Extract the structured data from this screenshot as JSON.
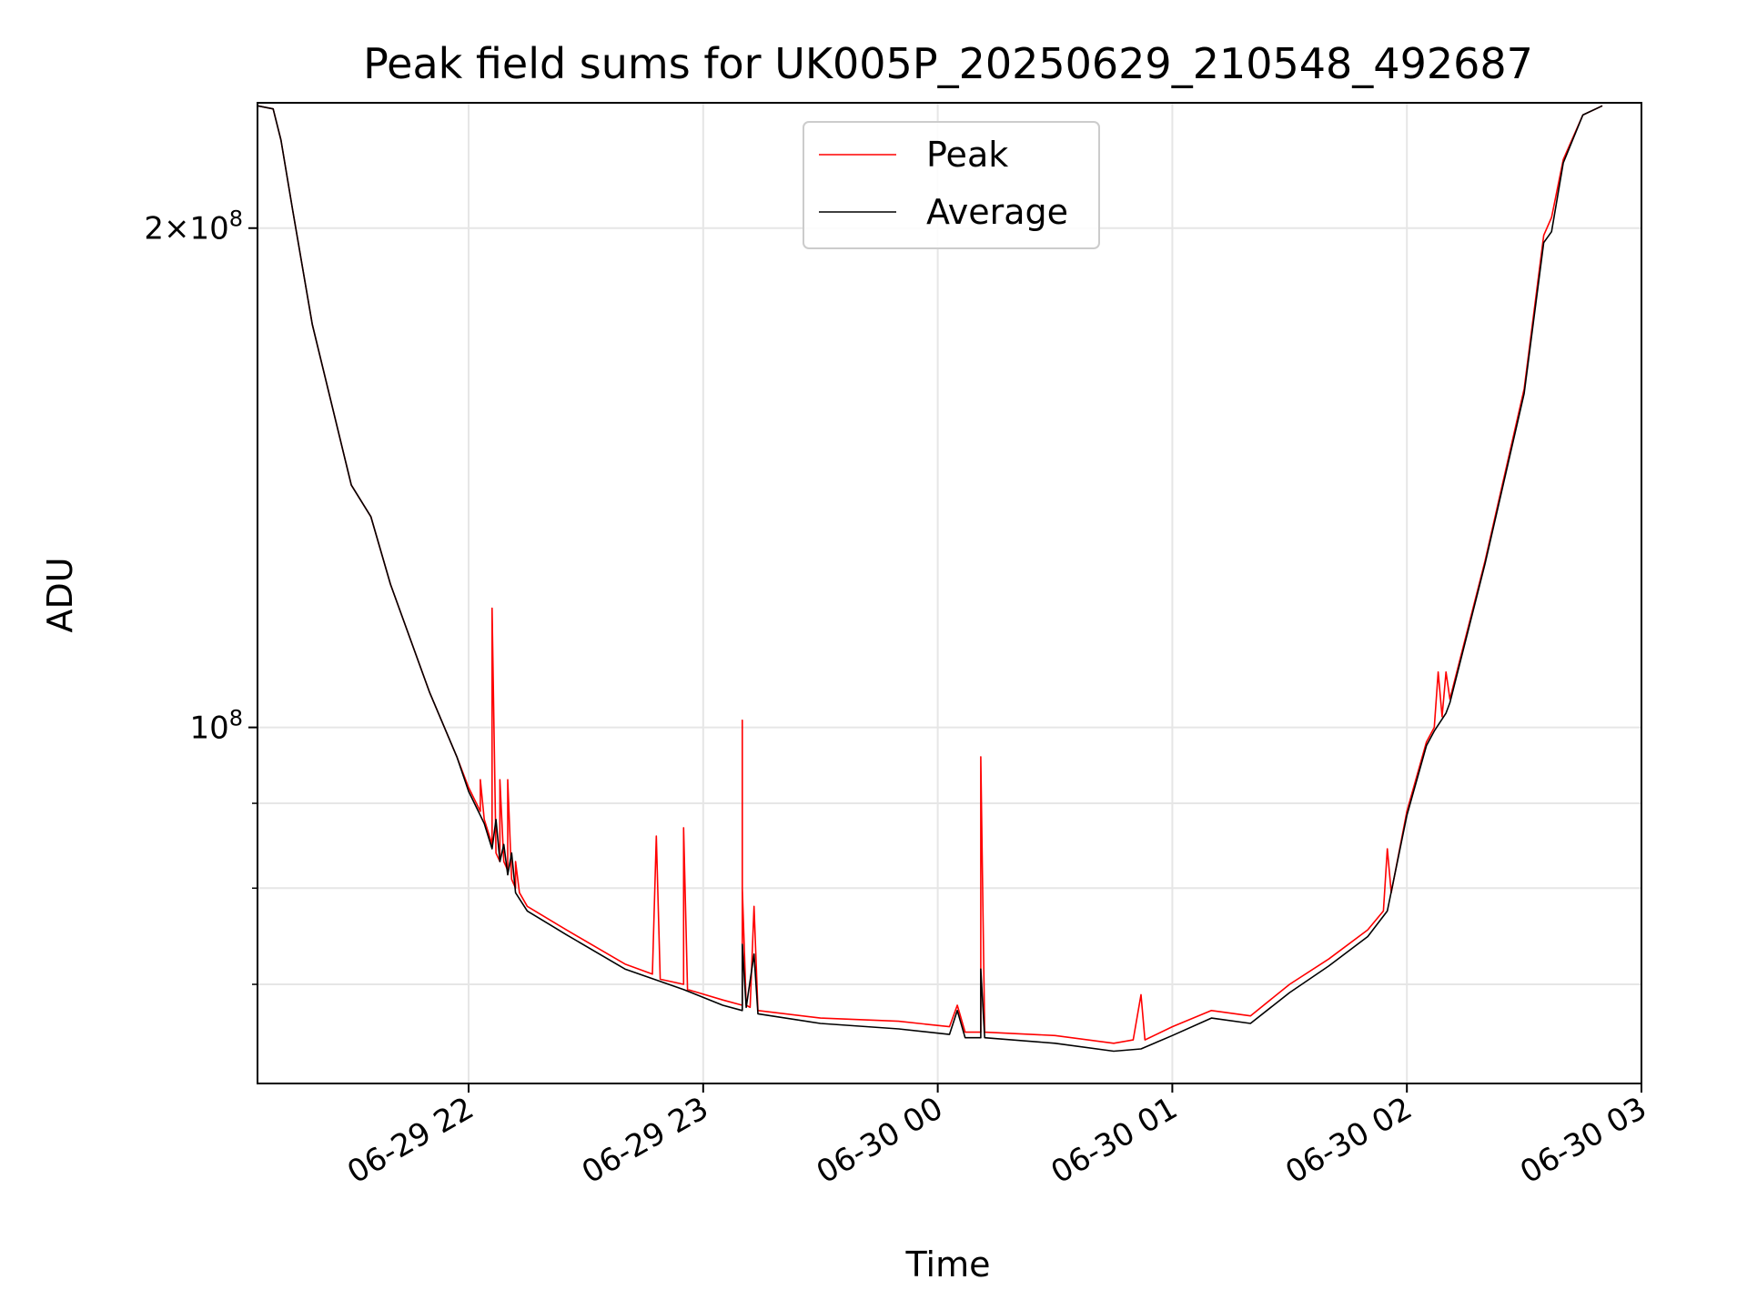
{
  "chart_data": {
    "type": "line",
    "title": "Peak field sums for UK005P_20250629_210548_492687",
    "xlabel": "Time",
    "ylabel": "ADU",
    "yscale": "log",
    "xlim": [
      "2025-06-29 21:06",
      "2025-06-30 03:00"
    ],
    "ylim": [
      61000000,
      238000000
    ],
    "grid": true,
    "legend_position": "top-center",
    "x_ticks": [
      {
        "t": "2025-06-29 22:00",
        "label": "06-29 22"
      },
      {
        "t": "2025-06-29 23:00",
        "label": "06-29 23"
      },
      {
        "t": "2025-06-30 00:00",
        "label": "06-30 00"
      },
      {
        "t": "2025-06-30 01:00",
        "label": "06-30 01"
      },
      {
        "t": "2025-06-30 02:00",
        "label": "06-30 02"
      },
      {
        "t": "2025-06-30 03:00",
        "label": "06-30 03"
      }
    ],
    "y_ticks_labeled": [
      {
        "value": 100000000,
        "mantissa": "",
        "exponent": "8"
      },
      {
        "value": 200000000,
        "mantissa": "2×",
        "exponent": "8"
      }
    ],
    "y_minor_ticks": [
      70000000,
      80000000,
      90000000
    ],
    "series": [
      {
        "name": "Peak",
        "color": "#ff0000",
        "points": [
          [
            "2025-06-29 21:06",
            237000000
          ],
          [
            "2025-06-29 21:10",
            236000000
          ],
          [
            "2025-06-29 21:12",
            226000000
          ],
          [
            "2025-06-29 21:15",
            205000000
          ],
          [
            "2025-06-29 21:20",
            175000000
          ],
          [
            "2025-06-29 21:30",
            140000000
          ],
          [
            "2025-06-29 21:35",
            134000000
          ],
          [
            "2025-06-29 21:40",
            122000000
          ],
          [
            "2025-06-29 21:50",
            105000000
          ],
          [
            "2025-06-29 21:57",
            96000000
          ],
          [
            "2025-06-29 22:00",
            92000000
          ],
          [
            "2025-06-29 22:03",
            89000000
          ],
          [
            "2025-06-29 22:03",
            93000000
          ],
          [
            "2025-06-29 22:04",
            88000000
          ],
          [
            "2025-06-29 22:06",
            85000000
          ],
          [
            "2025-06-29 22:06",
            118000000
          ],
          [
            "2025-06-29 22:07",
            84000000
          ],
          [
            "2025-06-29 22:08",
            83000000
          ],
          [
            "2025-06-29 22:08",
            93000000
          ],
          [
            "2025-06-29 22:09",
            83000000
          ],
          [
            "2025-06-29 22:10",
            82000000
          ],
          [
            "2025-06-29 22:10",
            93000000
          ],
          [
            "2025-06-29 22:11",
            81000000
          ],
          [
            "2025-06-29 22:12",
            80000000
          ],
          [
            "2025-06-29 22:12",
            83000000
          ],
          [
            "2025-06-29 22:13",
            79500000
          ],
          [
            "2025-06-29 22:15",
            78000000
          ],
          [
            "2025-06-29 22:25",
            75500000
          ],
          [
            "2025-06-29 22:40",
            72000000
          ],
          [
            "2025-06-29 22:47",
            71000000
          ],
          [
            "2025-06-29 22:48",
            86000000
          ],
          [
            "2025-06-29 22:49",
            70500000
          ],
          [
            "2025-06-29 22:55",
            70000000
          ],
          [
            "2025-06-29 22:55",
            87000000
          ],
          [
            "2025-06-29 22:56",
            69500000
          ],
          [
            "2025-06-29 23:05",
            68500000
          ],
          [
            "2025-06-29 23:10",
            68000000
          ],
          [
            "2025-06-29 23:10",
            101000000
          ],
          [
            "2025-06-29 23:10",
            80000000
          ],
          [
            "2025-06-29 23:11",
            68000000
          ],
          [
            "2025-06-29 23:12",
            67800000
          ],
          [
            "2025-06-29 23:13",
            78000000
          ],
          [
            "2025-06-29 23:14",
            67500000
          ],
          [
            "2025-06-29 23:30",
            66800000
          ],
          [
            "2025-06-29 23:50",
            66500000
          ],
          [
            "2025-06-30 00:03",
            66000000
          ],
          [
            "2025-06-30 00:05",
            68000000
          ],
          [
            "2025-06-30 00:07",
            65500000
          ],
          [
            "2025-06-30 00:11",
            65500000
          ],
          [
            "2025-06-30 00:11",
            96000000
          ],
          [
            "2025-06-30 00:12",
            65500000
          ],
          [
            "2025-06-30 00:30",
            65200000
          ],
          [
            "2025-06-30 00:45",
            64500000
          ],
          [
            "2025-06-30 00:50",
            64800000
          ],
          [
            "2025-06-30 00:52",
            69000000
          ],
          [
            "2025-06-30 00:53",
            64800000
          ],
          [
            "2025-06-30 01:00",
            66000000
          ],
          [
            "2025-06-30 01:10",
            67500000
          ],
          [
            "2025-06-30 01:20",
            67000000
          ],
          [
            "2025-06-30 01:30",
            70000000
          ],
          [
            "2025-06-30 01:40",
            72500000
          ],
          [
            "2025-06-30 01:50",
            75500000
          ],
          [
            "2025-06-30 01:54",
            77500000
          ],
          [
            "2025-06-30 01:55",
            84500000
          ],
          [
            "2025-06-30 01:56",
            79500000
          ],
          [
            "2025-06-30 02:00",
            89000000
          ],
          [
            "2025-06-30 02:05",
            98000000
          ],
          [
            "2025-06-30 02:07",
            100000000
          ],
          [
            "2025-06-30 02:08",
            108000000
          ],
          [
            "2025-06-30 02:09",
            101500000
          ],
          [
            "2025-06-30 02:10",
            108000000
          ],
          [
            "2025-06-30 02:11",
            104000000
          ],
          [
            "2025-06-30 02:20",
            126000000
          ],
          [
            "2025-06-30 02:30",
            160000000
          ],
          [
            "2025-06-30 02:35",
            198000000
          ],
          [
            "2025-06-30 02:37",
            203000000
          ],
          [
            "2025-06-30 02:40",
            220000000
          ],
          [
            "2025-06-30 02:45",
            234000000
          ],
          [
            "2025-06-30 02:50",
            237000000
          ]
        ]
      },
      {
        "name": "Average",
        "color": "#000000",
        "points": [
          [
            "2025-06-29 21:06",
            237000000
          ],
          [
            "2025-06-29 21:10",
            236000000
          ],
          [
            "2025-06-29 21:12",
            226000000
          ],
          [
            "2025-06-29 21:15",
            205000000
          ],
          [
            "2025-06-29 21:20",
            175000000
          ],
          [
            "2025-06-29 21:30",
            140000000
          ],
          [
            "2025-06-29 21:35",
            134000000
          ],
          [
            "2025-06-29 21:40",
            122000000
          ],
          [
            "2025-06-29 21:50",
            105000000
          ],
          [
            "2025-06-29 21:57",
            96000000
          ],
          [
            "2025-06-29 22:00",
            91500000
          ],
          [
            "2025-06-29 22:03",
            88500000
          ],
          [
            "2025-06-29 22:04",
            87500000
          ],
          [
            "2025-06-29 22:06",
            84500000
          ],
          [
            "2025-06-29 22:07",
            88000000
          ],
          [
            "2025-06-29 22:08",
            83000000
          ],
          [
            "2025-06-29 22:09",
            85000000
          ],
          [
            "2025-06-29 22:10",
            81500000
          ],
          [
            "2025-06-29 22:11",
            84000000
          ],
          [
            "2025-06-29 22:12",
            79500000
          ],
          [
            "2025-06-29 22:15",
            77500000
          ],
          [
            "2025-06-29 22:25",
            75000000
          ],
          [
            "2025-06-29 22:40",
            71500000
          ],
          [
            "2025-06-29 22:55",
            69500000
          ],
          [
            "2025-06-29 23:05",
            68000000
          ],
          [
            "2025-06-29 23:10",
            67500000
          ],
          [
            "2025-06-29 23:10",
            74000000
          ],
          [
            "2025-06-29 23:11",
            67800000
          ],
          [
            "2025-06-29 23:13",
            73000000
          ],
          [
            "2025-06-29 23:14",
            67200000
          ],
          [
            "2025-06-29 23:30",
            66300000
          ],
          [
            "2025-06-29 23:50",
            65800000
          ],
          [
            "2025-06-30 00:03",
            65300000
          ],
          [
            "2025-06-30 00:05",
            67500000
          ],
          [
            "2025-06-30 00:07",
            65000000
          ],
          [
            "2025-06-30 00:11",
            65000000
          ],
          [
            "2025-06-30 00:11",
            71500000
          ],
          [
            "2025-06-30 00:12",
            65000000
          ],
          [
            "2025-06-30 00:30",
            64500000
          ],
          [
            "2025-06-30 00:45",
            63800000
          ],
          [
            "2025-06-30 00:52",
            64000000
          ],
          [
            "2025-06-30 01:00",
            65200000
          ],
          [
            "2025-06-30 01:10",
            66800000
          ],
          [
            "2025-06-30 01:20",
            66300000
          ],
          [
            "2025-06-30 01:30",
            69200000
          ],
          [
            "2025-06-30 01:40",
            71800000
          ],
          [
            "2025-06-30 01:50",
            74800000
          ],
          [
            "2025-06-30 01:55",
            77500000
          ],
          [
            "2025-06-30 02:00",
            88500000
          ],
          [
            "2025-06-30 02:05",
            97500000
          ],
          [
            "2025-06-30 02:07",
            99500000
          ],
          [
            "2025-06-30 02:10",
            102000000
          ],
          [
            "2025-06-30 02:11",
            103500000
          ],
          [
            "2025-06-30 02:20",
            125500000
          ],
          [
            "2025-06-30 02:30",
            159000000
          ],
          [
            "2025-06-30 02:35",
            196000000
          ],
          [
            "2025-06-30 02:37",
            199000000
          ],
          [
            "2025-06-30 02:40",
            219000000
          ],
          [
            "2025-06-30 02:45",
            234000000
          ],
          [
            "2025-06-30 02:50",
            237000000
          ]
        ]
      }
    ]
  }
}
